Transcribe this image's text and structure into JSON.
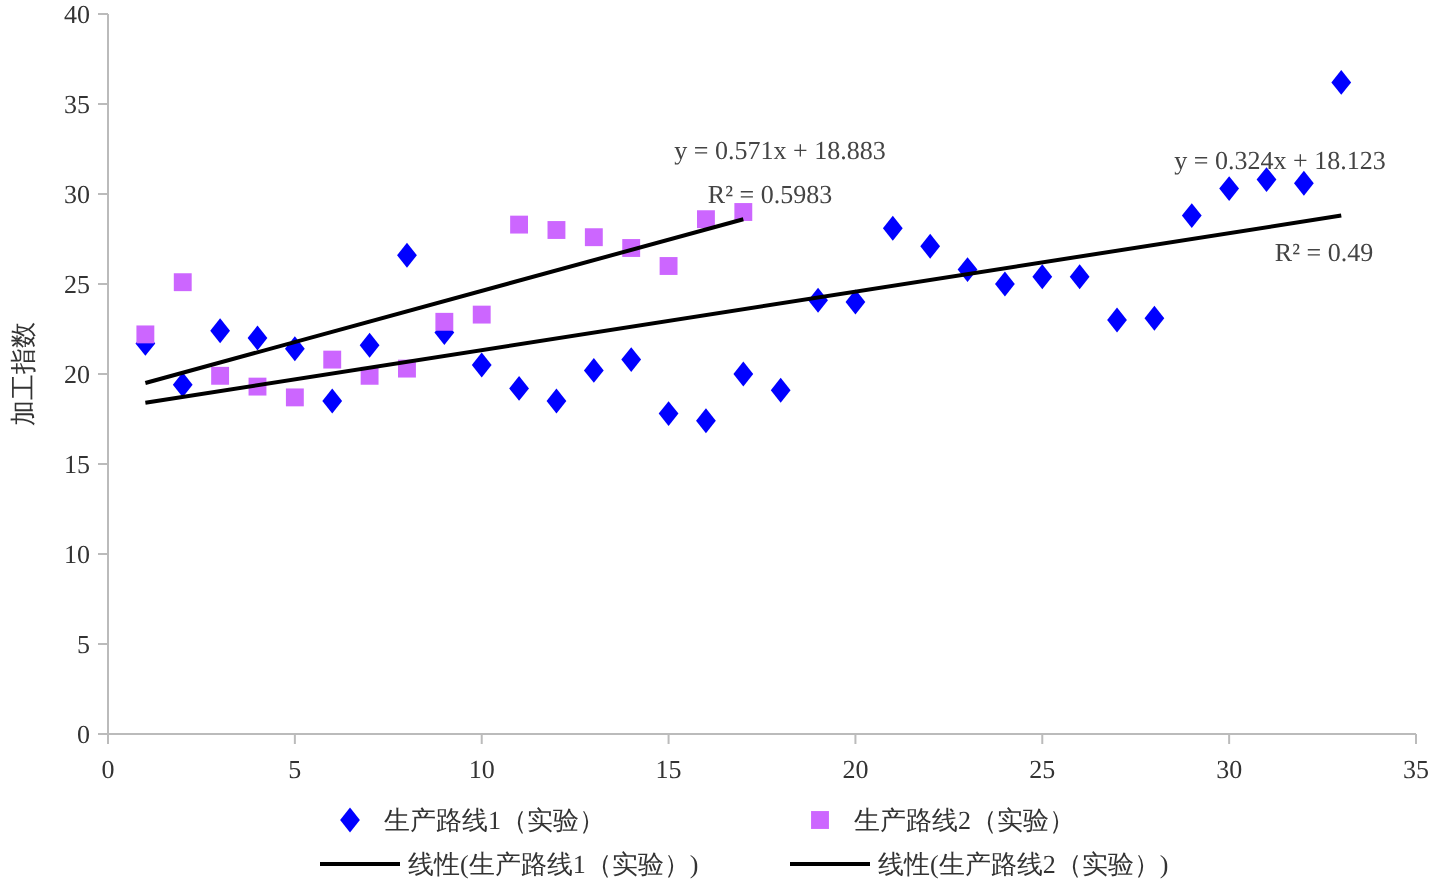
{
  "chart_data": {
    "type": "scatter",
    "ylabel": "加工指数",
    "xlim": [
      0,
      35
    ],
    "xticks": [
      0,
      5,
      10,
      15,
      20,
      25,
      30,
      35
    ],
    "ylim": [
      0,
      40
    ],
    "yticks": [
      0,
      5,
      10,
      15,
      20,
      25,
      30,
      35,
      40
    ],
    "grid": false,
    "legend": "bottom",
    "series": [
      {
        "name": "生产路线1（实验）",
        "color": "#0000ff",
        "marker": "diamond",
        "x": [
          1,
          2,
          3,
          4,
          5,
          6,
          7,
          8,
          9,
          10,
          11,
          12,
          13,
          14,
          15,
          16,
          17,
          18,
          19,
          20,
          21,
          22,
          23,
          24,
          25,
          26,
          27,
          28,
          29,
          30,
          31,
          32,
          33
        ],
        "values": [
          21.7,
          19.4,
          22.4,
          22.0,
          21.4,
          18.5,
          21.6,
          26.6,
          22.3,
          20.5,
          19.2,
          18.5,
          20.2,
          20.8,
          17.8,
          17.4,
          20.0,
          19.1,
          24.1,
          24.0,
          28.1,
          27.1,
          25.8,
          25.0,
          25.4,
          25.4,
          23.0,
          23.1,
          28.8,
          30.3,
          30.8,
          30.6,
          36.2
        ]
      },
      {
        "name": "生产路线2（实验）",
        "color": "#cc66ff",
        "marker": "square",
        "x": [
          1,
          2,
          3,
          4,
          5,
          6,
          7,
          8,
          9,
          10,
          11,
          12,
          13,
          14,
          15,
          16,
          17
        ],
        "values": [
          22.2,
          25.1,
          19.9,
          19.3,
          18.7,
          20.8,
          19.9,
          20.3,
          22.9,
          23.3,
          28.3,
          28.0,
          27.6,
          27.0,
          26.0,
          28.6,
          29.0
        ]
      },
      {
        "name": "线性(生产路线1（实验）)",
        "type": "line",
        "color": "#000000",
        "marker": "none",
        "line_style": "solid",
        "x": [
          1,
          33
        ],
        "values": [
          18.4,
          28.8
        ]
      },
      {
        "name": "线性(生产路线2（实验）)",
        "type": "line",
        "color": "#000000",
        "marker": "none",
        "line_style": "solid",
        "x": [
          1,
          17
        ],
        "values": [
          19.5,
          28.6
        ]
      }
    ],
    "annotations": [
      "y = 0.571x + 18.883",
      "R² = 0.5983",
      "y = 0.324x + 18.123",
      "R² = 0.49"
    ]
  }
}
